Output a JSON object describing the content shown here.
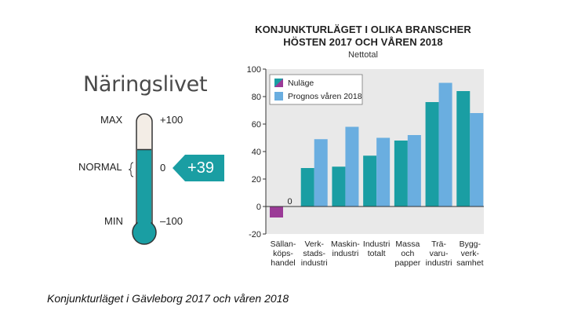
{
  "thermometer": {
    "title": "Näringslivet",
    "max_label": "MAX",
    "normal_label": "NORMAL",
    "min_label": "MIN",
    "max_value_label": "+100",
    "normal_value_label": "0",
    "min_value_label": "–100",
    "current_value": "+39",
    "fill_fraction": 0.39,
    "colors": {
      "fill": "#1a9ea3",
      "tube": "#f3ede6",
      "outline": "#333333"
    }
  },
  "caption": "Konjunkturläget i Gävleborg 2017 och våren 2018",
  "chart_data": {
    "type": "bar",
    "title_line1": "KONJUNKTURLÄGET I OLIKA BRANSCHER",
    "title_line2": "HÖSTEN 2017 OCH VÅREN 2018",
    "subtitle": "Nettotal",
    "categories": [
      [
        "Sällan-",
        "köps-",
        "handel"
      ],
      [
        "Verk-",
        "stads-",
        "industri"
      ],
      [
        "Maskin-",
        "industri"
      ],
      [
        "Industri",
        "totalt"
      ],
      [
        "Massa",
        "och",
        "papper"
      ],
      [
        "Trä-",
        "varu-",
        "industri"
      ],
      [
        "Bygg-",
        "verk-",
        "samhet"
      ]
    ],
    "series": [
      {
        "name": "Nuläge",
        "values": [
          -8,
          28,
          29,
          37,
          48,
          76,
          84
        ]
      },
      {
        "name": "Prognos våren 2018",
        "values": [
          0,
          49,
          58,
          50,
          52,
          90,
          68
        ]
      }
    ],
    "data_labels": [
      {
        "category_index": 0,
        "series_index": 1,
        "text": "0"
      }
    ],
    "yticks": [
      100,
      80,
      60,
      40,
      20,
      0,
      -20
    ],
    "ylim": [
      -20,
      100
    ],
    "legend_position": "top-left",
    "colors": {
      "nulage": "#1a9ea3",
      "nulage_first": "#9b3b97",
      "prognos": "#6aaee0",
      "plot_bg": "#e9e9e9",
      "zero_line": "#333333"
    }
  }
}
